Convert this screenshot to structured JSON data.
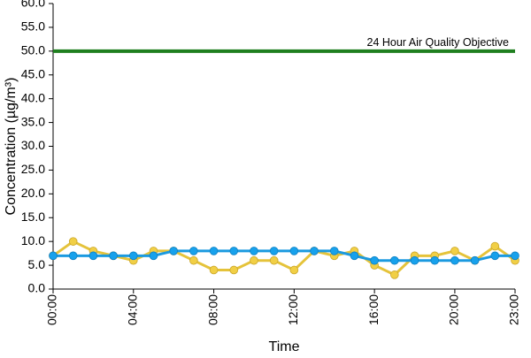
{
  "chart_data": {
    "type": "line",
    "title": "",
    "xlabel": "Time",
    "ylabel": "Concentration (µg/m³)",
    "x_categories": [
      "00:00",
      "01:00",
      "02:00",
      "03:00",
      "04:00",
      "05:00",
      "06:00",
      "07:00",
      "08:00",
      "09:00",
      "10:00",
      "11:00",
      "12:00",
      "13:00",
      "14:00",
      "15:00",
      "16:00",
      "17:00",
      "18:00",
      "19:00",
      "20:00",
      "21:00",
      "22:00",
      "23:00"
    ],
    "x_tick_labels": [
      "00:00",
      "04:00",
      "08:00",
      "12:00",
      "16:00",
      "20:00",
      "23:00"
    ],
    "y_tick_labels": [
      "0.0",
      "5.0",
      "10.0",
      "15.0",
      "20.0",
      "25.0",
      "30.0",
      "35.0",
      "40.0",
      "45.0",
      "50.0",
      "55.0",
      "60.0"
    ],
    "ylim": [
      0,
      60
    ],
    "y_major_step": 5,
    "grid": false,
    "series": [
      {
        "color": "#e5c33a",
        "marker_fill": "#f1cf45",
        "marker_edge": "#caa62a",
        "values": [
          7,
          10,
          8,
          7,
          6,
          8,
          8,
          6,
          4,
          4,
          6,
          6,
          4,
          8,
          7,
          8,
          5,
          3,
          7,
          7,
          8,
          6,
          9,
          6
        ]
      },
      {
        "color": "#1b9ae0",
        "marker_fill": "#17a1ec",
        "marker_edge": "#0f7fc1",
        "values": [
          7,
          7,
          7,
          7,
          7,
          7,
          8,
          8,
          8,
          8,
          8,
          8,
          8,
          8,
          8,
          7,
          6,
          6,
          6,
          6,
          6,
          6,
          7,
          7
        ]
      }
    ],
    "reference_line": {
      "value": 50,
      "label": "24 Hour Air Quality Objective",
      "color": "#1f7f1f"
    }
  }
}
